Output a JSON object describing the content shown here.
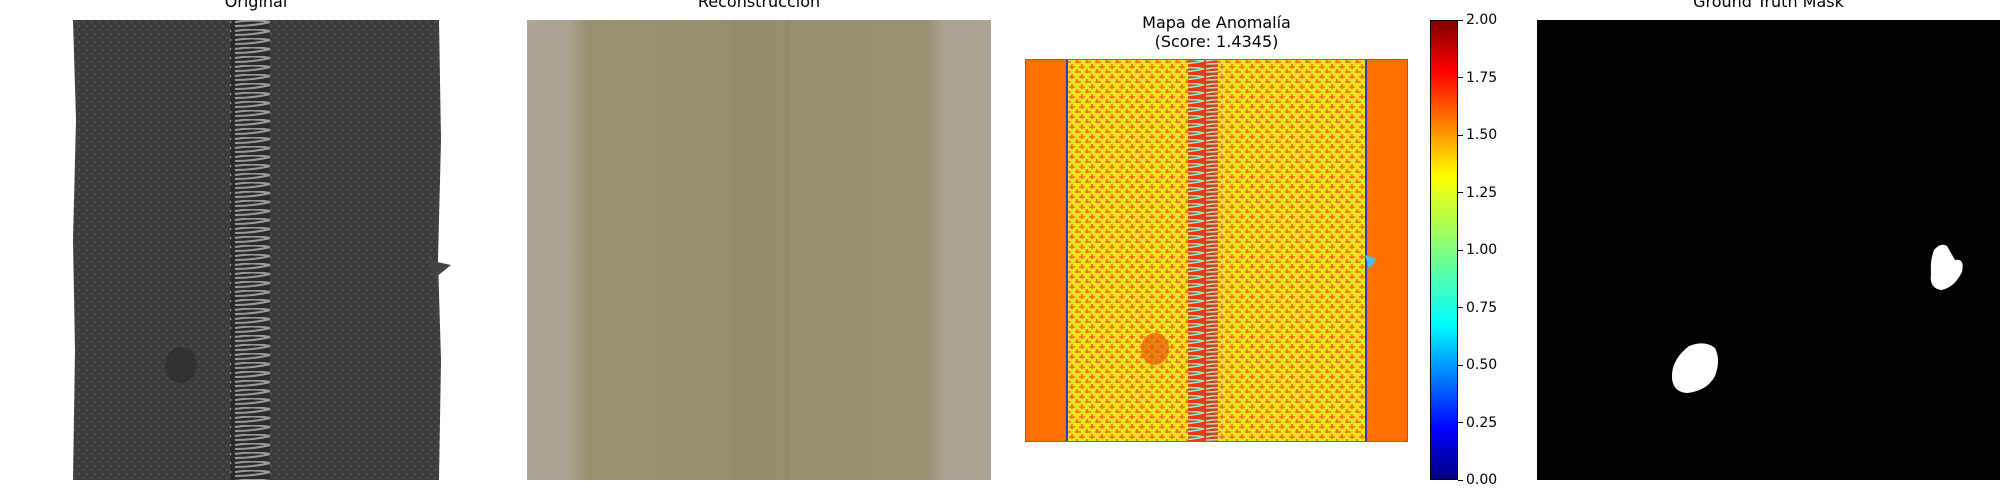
{
  "figure": {
    "panels": [
      {
        "id": "original",
        "title": "Original"
      },
      {
        "id": "reconstruction",
        "title": "Reconstrucción"
      },
      {
        "id": "anomaly_map",
        "title": "Mapa de Anomalía\n(Score: 1.4345)"
      },
      {
        "id": "ground_truth",
        "title": "Ground Truth Mask"
      }
    ],
    "colorbar": {
      "min": 0.0,
      "max": 2.0,
      "colormap": "jet",
      "ticks": [
        "2.00",
        "1.75",
        "1.50",
        "1.25",
        "1.00",
        "0.75",
        "0.50",
        "0.25",
        "0.00"
      ]
    }
  }
}
